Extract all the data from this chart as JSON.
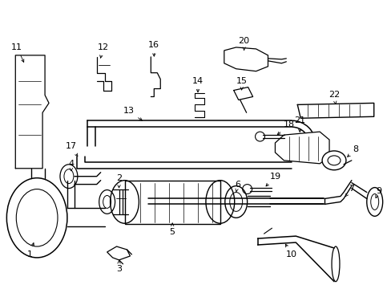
{
  "background_color": "#ffffff",
  "line_color": "#000000",
  "fig_width": 4.89,
  "fig_height": 3.6,
  "dpi": 100,
  "font_size": 8.0
}
